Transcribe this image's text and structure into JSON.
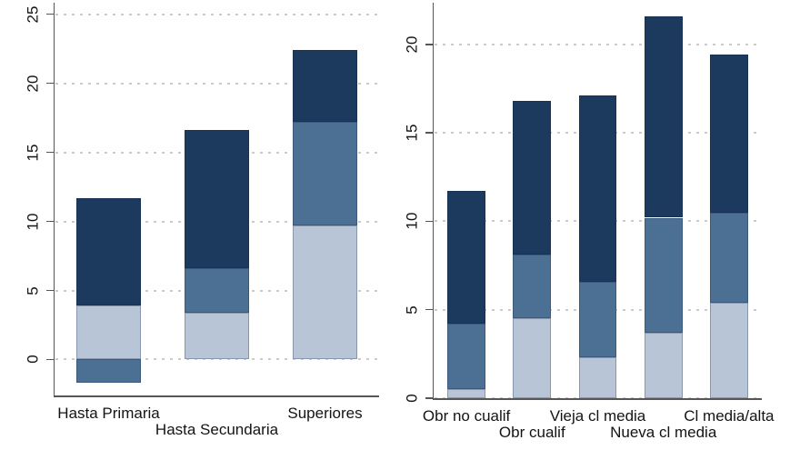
{
  "figure": {
    "background": "#ffffff",
    "colors": {
      "axis": "#565656",
      "gridline": "#cbcbcb",
      "text": "#141414",
      "series_light": "#B7C5D6",
      "series_steel": "#4C6F94",
      "series_navy": "#1B3A5E"
    }
  },
  "chart_data": [
    {
      "type": "bar",
      "stacked": true,
      "panel": "left",
      "title": "",
      "xlabel": "",
      "ylabel": "",
      "categories": [
        "Hasta Primaria",
        "Hasta Secundaria",
        "Superiores"
      ],
      "label_rows": [
        1,
        2,
        1
      ],
      "series": [
        {
          "name": "light-blue",
          "color": "#B7C5D6",
          "values": [
            3.9,
            3.4,
            9.7
          ]
        },
        {
          "name": "steel-blue",
          "color": "#4C6F94",
          "values": [
            -1.7,
            3.2,
            7.5
          ]
        },
        {
          "name": "navy",
          "color": "#1B3A5E",
          "values": [
            7.8,
            10.0,
            5.2
          ]
        }
      ],
      "stack_totals": [
        11.7,
        16.6,
        22.4
      ],
      "segment_boundaries_note": "bar1: steel -1.7 to 0, light 0 to 3.9, navy 3.9 to 11.7; bar2: light 0-3.4, steel 3.4-6.6, navy 6.6-16.6; bar3: light 0-9.7, steel 9.7-17.2, navy 17.2-22.4",
      "ylim": [
        -2.6,
        25.7
      ],
      "yticks": [
        0,
        5,
        10,
        15,
        20,
        25
      ],
      "grid": true,
      "legend": "none",
      "bar_width_frac": 0.59
    },
    {
      "type": "bar",
      "stacked": true,
      "panel": "right",
      "title": "",
      "xlabel": "",
      "ylabel": "",
      "categories": [
        "Obr no cualif",
        "Obr cualif",
        "Vieja cl media",
        "Nueva cl media",
        "Cl media/alta"
      ],
      "label_rows": [
        1,
        2,
        1,
        2,
        1
      ],
      "series": [
        {
          "name": "light-blue",
          "color": "#B7C5D6",
          "values": [
            0.5,
            4.5,
            2.3,
            3.7,
            5.4
          ]
        },
        {
          "name": "steel-blue",
          "color": "#4C6F94",
          "values": [
            3.7,
            3.6,
            4.3,
            6.5,
            5.1
          ]
        },
        {
          "name": "navy",
          "color": "#1B3A5E",
          "values": [
            7.5,
            8.7,
            10.5,
            11.4,
            8.9
          ]
        }
      ],
      "stack_totals": [
        11.7,
        16.8,
        17.1,
        21.6,
        19.4
      ],
      "segment_boundaries_note": "boundaries at: bar1 0.5/4.2/11.7; bar2 4.5/8.1/16.8; bar3 2.3/6.6/17.1; bar4 3.7/10.2/21.6; bar5 5.4/10.5/19.4",
      "ylim": [
        0,
        22.25
      ],
      "yticks": [
        0,
        5,
        10,
        15,
        20
      ],
      "grid": true,
      "legend": "none",
      "bar_width_frac": 0.58
    }
  ]
}
